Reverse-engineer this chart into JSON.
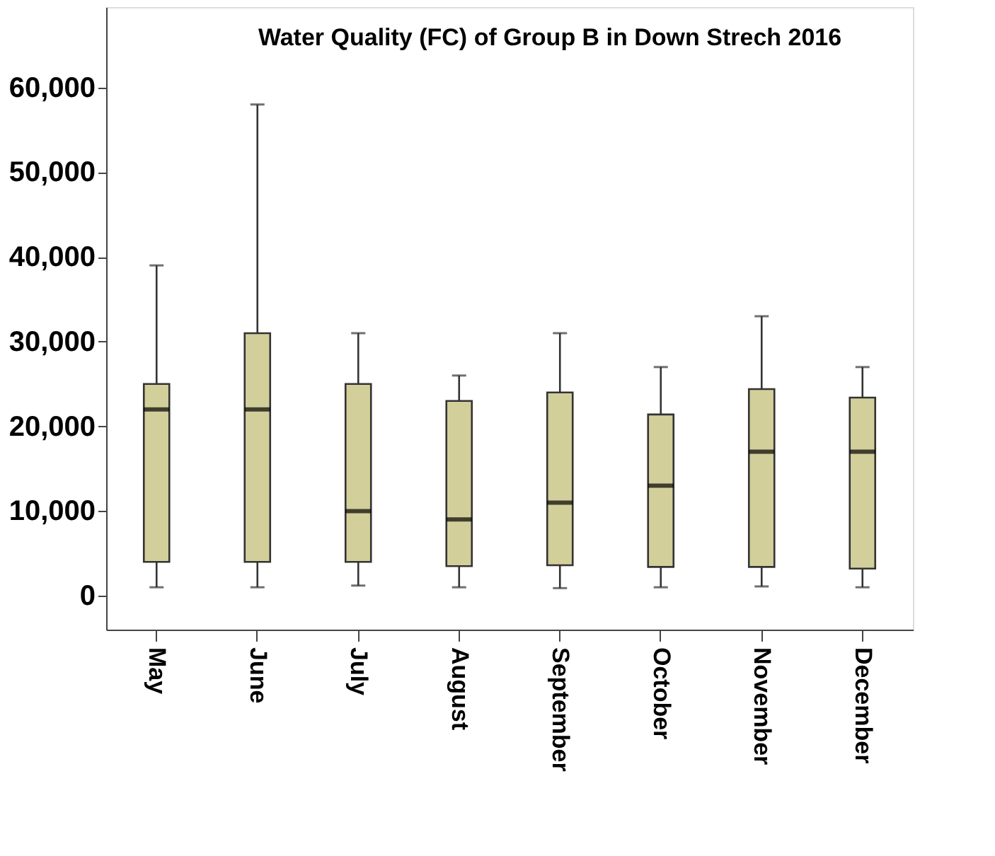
{
  "chart_data": {
    "type": "box",
    "title": "Water Quality (FC) of Group B in Down Strech 2016",
    "categories": [
      "May",
      "June",
      "July",
      "August",
      "September",
      "October",
      "November",
      "December"
    ],
    "boxes": [
      {
        "low": 1000,
        "q1": 4000,
        "median": 22000,
        "q3": 25000,
        "high": 39000
      },
      {
        "low": 1000,
        "q1": 4000,
        "median": 22000,
        "q3": 31000,
        "high": 58000
      },
      {
        "low": 1200,
        "q1": 4000,
        "median": 10000,
        "q3": 25000,
        "high": 31000
      },
      {
        "low": 1000,
        "q1": 3500,
        "median": 9000,
        "q3": 23000,
        "high": 26000
      },
      {
        "low": 900,
        "q1": 3600,
        "median": 11000,
        "q3": 24000,
        "high": 31000
      },
      {
        "low": 1000,
        "q1": 3400,
        "median": 13000,
        "q3": 21400,
        "high": 27000
      },
      {
        "low": 1100,
        "q1": 3400,
        "median": 17000,
        "q3": 24400,
        "high": 33000
      },
      {
        "low": 1000,
        "q1": 3200,
        "median": 17000,
        "q3": 23400,
        "high": 27000
      }
    ],
    "color": "#d3cf9b",
    "ylim": [
      -4000,
      69500
    ],
    "yticks": [
      {
        "value": 0,
        "label": "0"
      },
      {
        "value": 10000,
        "label": "10,000"
      },
      {
        "value": 20000,
        "label": "20,000"
      },
      {
        "value": 30000,
        "label": "30,000"
      },
      {
        "value": 40000,
        "label": "40,000"
      },
      {
        "value": 50000,
        "label": "50,000"
      },
      {
        "value": 60000,
        "label": "60,000"
      }
    ],
    "grid": false
  }
}
